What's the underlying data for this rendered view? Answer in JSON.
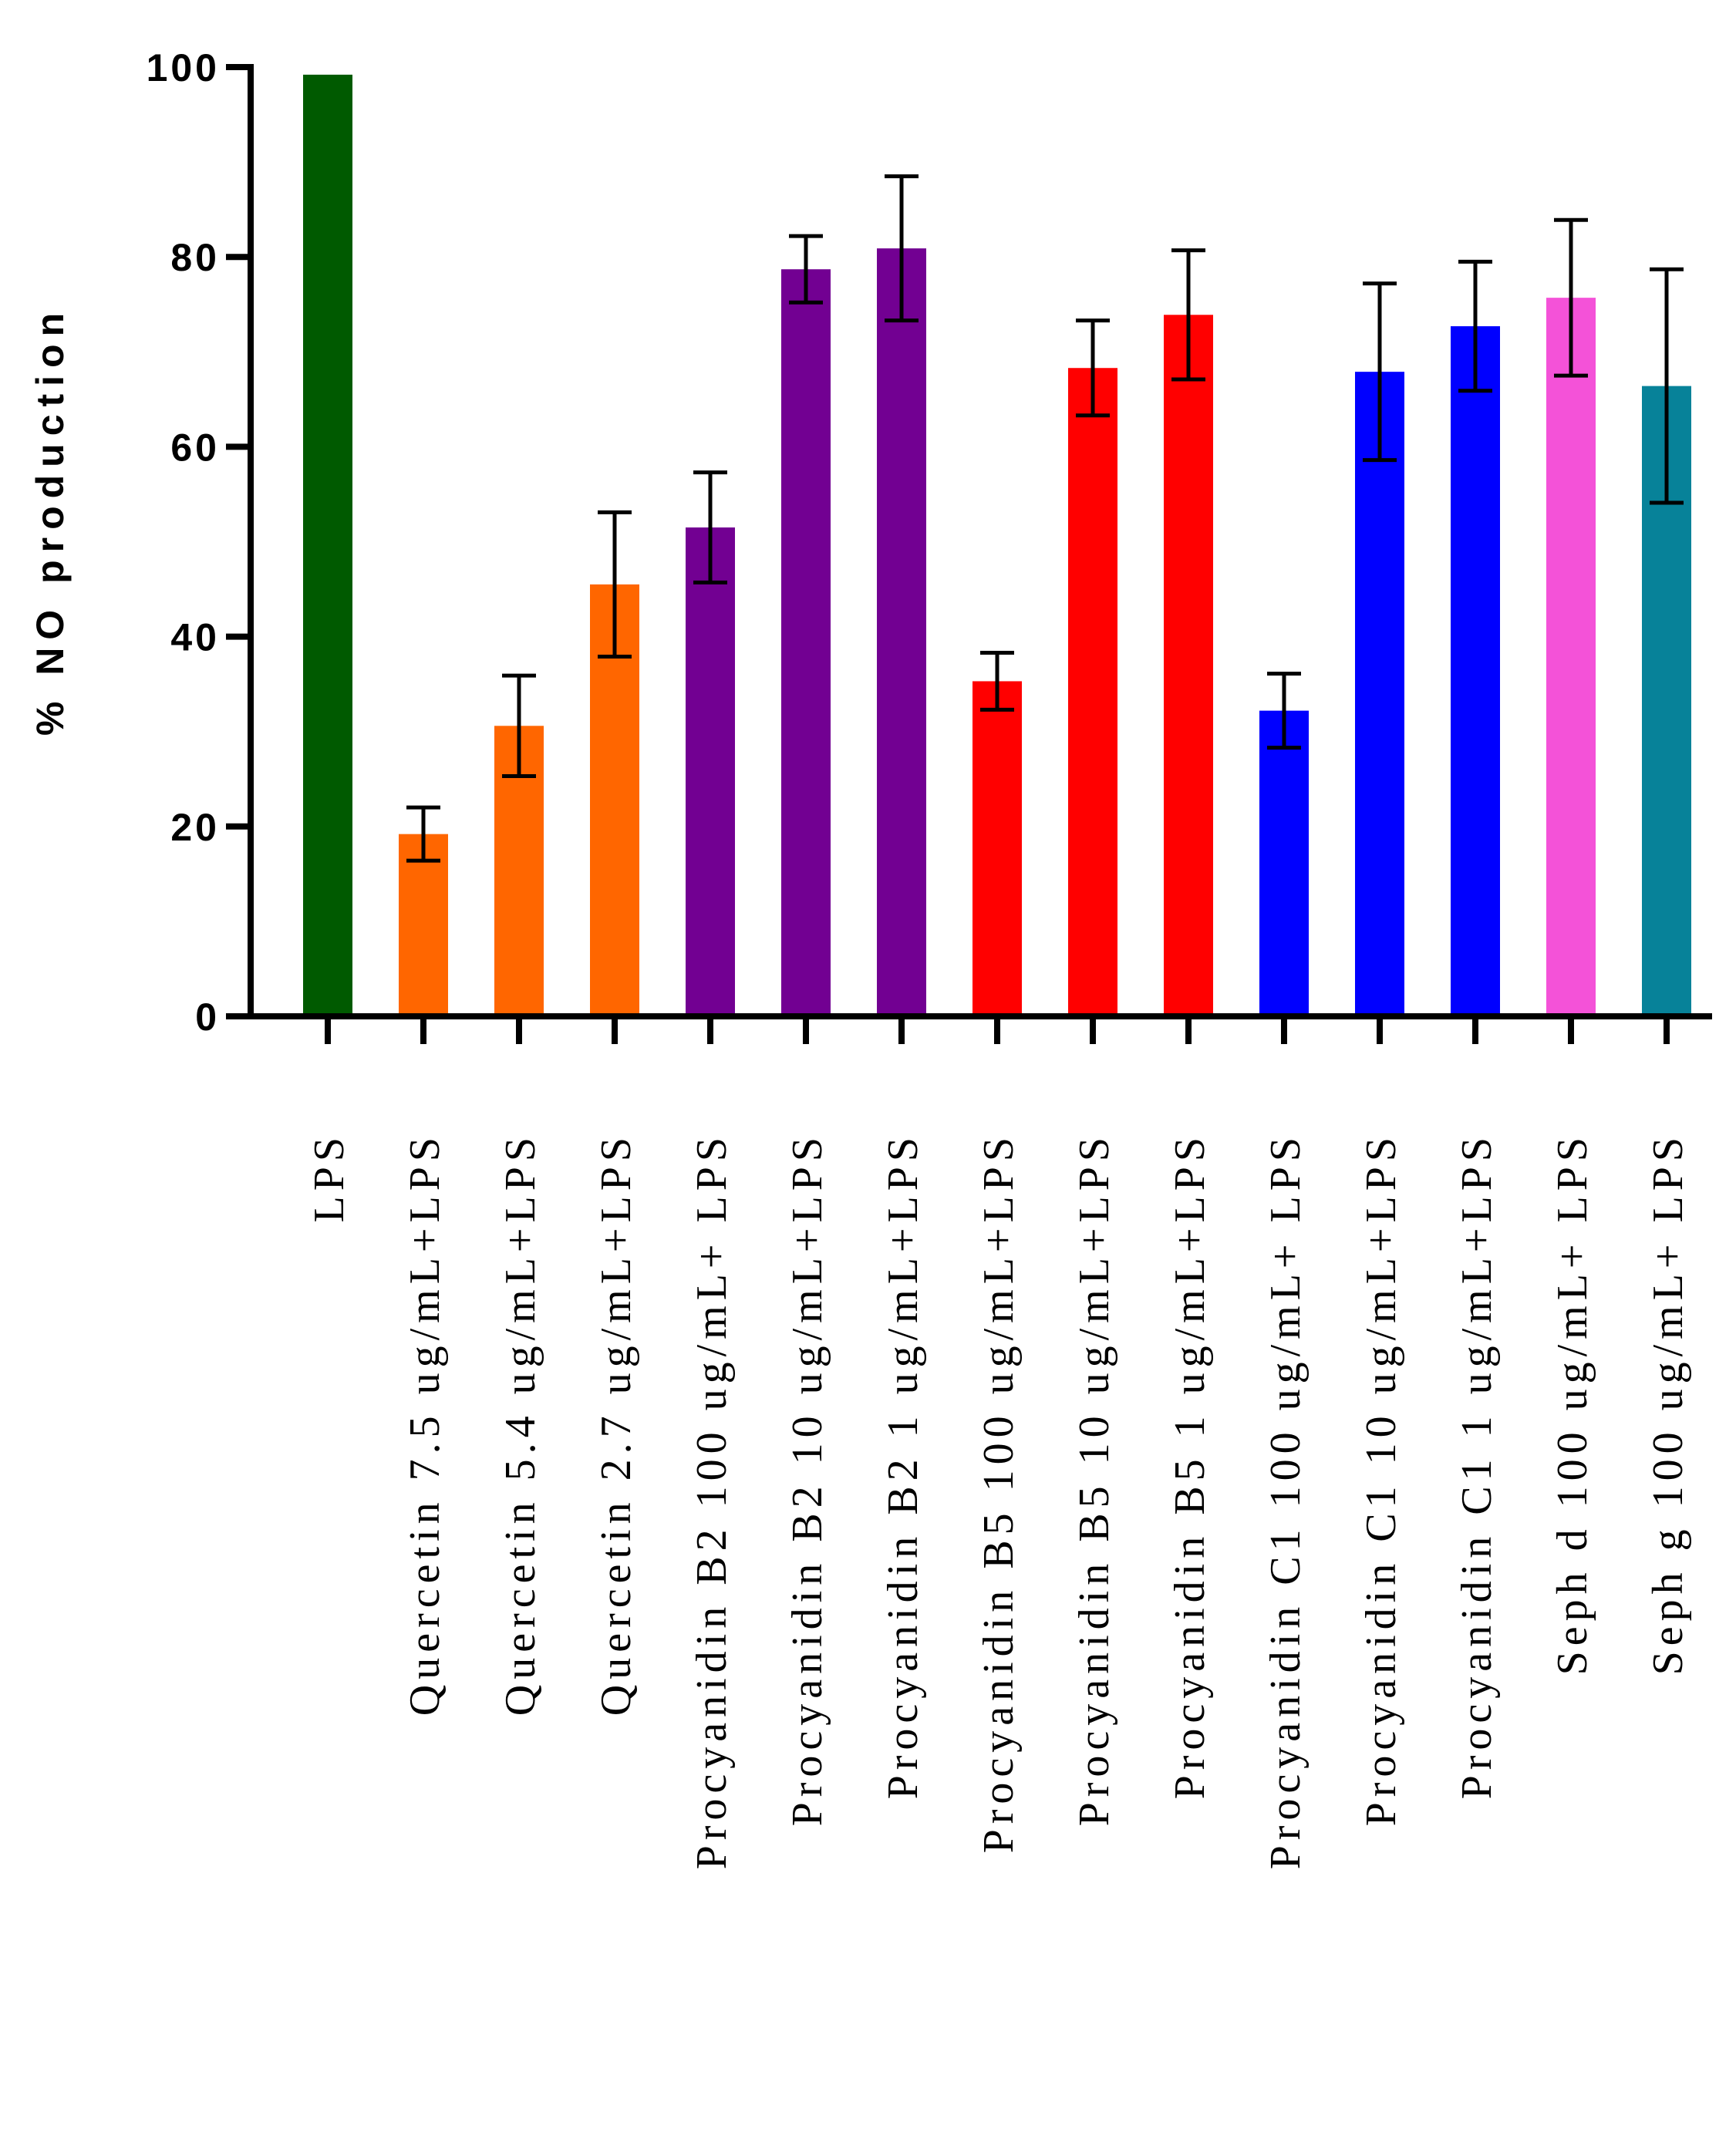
{
  "chart_data": {
    "type": "bar",
    "title": "",
    "xlabel": "",
    "ylabel": "% NO production",
    "ylim": [
      0,
      100
    ],
    "yticks": [
      0,
      20,
      40,
      60,
      80,
      100
    ],
    "ytick_labels": [
      "0",
      "20",
      "40",
      "60",
      "80",
      "100"
    ],
    "grid": false,
    "legend": "none",
    "categories": [
      "LPS",
      "Quercetin 7.5 ug/mL+LPS",
      "Quercetin 5.4 ug/mL+LPS",
      "Quercetin 2.7 ug/mL+LPS",
      "Procyanidin B2 100 ug/mL+ LPS",
      "Procyanidin B2 10 ug/mL+LPS",
      "Procyanidin B2 1 ug/mL+LPS",
      "Procyanidin B5 100 ug/mL+LPS",
      "Procyanidin B5 10 ug/mL+LPS",
      "Procyanidin B5 1 ug/mL+LPS",
      "Procyanidin C1 100 ug/mL+ LPS",
      "Procyanidin C1 10 ug/mL+LPS",
      "Procyanidin C1 1 ug/mL+LPS",
      "Seph d 100 ug/mL+ LPS",
      "Seph g 100 ug/mL+ LPS"
    ],
    "values": [
      99.2,
      19.2,
      30.6,
      45.5,
      51.5,
      78.7,
      80.9,
      35.3,
      68.3,
      73.9,
      32.2,
      67.9,
      72.7,
      75.7,
      66.4
    ],
    "errors": [
      0,
      2.8,
      5.3,
      7.6,
      5.8,
      3.5,
      7.6,
      3.0,
      5.0,
      6.8,
      3.9,
      9.3,
      6.8,
      8.2,
      12.3
    ],
    "colors": [
      "#005a00",
      "#ff6600",
      "#ff6600",
      "#ff6600",
      "#720092",
      "#720092",
      "#720092",
      "#ff0000",
      "#ff0000",
      "#ff0000",
      "#0000ff",
      "#0000ff",
      "#0000ff",
      "#f452d8",
      "#078299"
    ]
  }
}
